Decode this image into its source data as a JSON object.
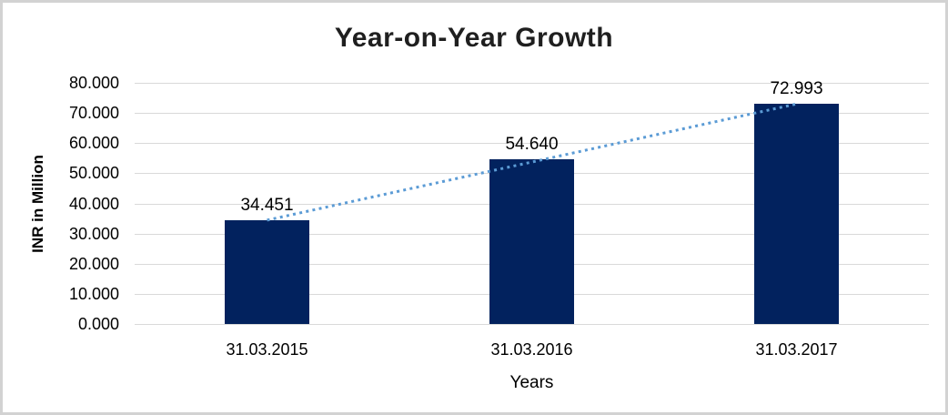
{
  "chart_data": {
    "type": "bar",
    "title": "Year-on-Year Growth",
    "xlabel": "Years",
    "ylabel": "INR in Million",
    "categories": [
      "31.03.2015",
      "31.03.2016",
      "31.03.2017"
    ],
    "values": [
      34451,
      54640,
      72993
    ],
    "value_labels": [
      "34.451",
      "54.640",
      "72.993"
    ],
    "y_ticks": [
      {
        "value": 80000,
        "label": "80.000"
      },
      {
        "value": 70000,
        "label": "70.000"
      },
      {
        "value": 60000,
        "label": "60.000"
      },
      {
        "value": 50000,
        "label": "50.000"
      },
      {
        "value": 40000,
        "label": "40.000"
      },
      {
        "value": 30000,
        "label": "30.000"
      },
      {
        "value": 20000,
        "label": "20.000"
      },
      {
        "value": 10000,
        "label": "10.000"
      },
      {
        "value": 0,
        "label": "0.000"
      }
    ],
    "ylim": [
      0,
      80000
    ],
    "grid": "horizontal",
    "legend": "none",
    "trendline": {
      "type": "linear",
      "style": "dotted"
    },
    "colors": {
      "bar": "#02225E",
      "trendline": "#5B9BD5",
      "gridline": "#D9D9D9",
      "title_text": "#1F1F1F",
      "axis_text": "#000000",
      "frame_border": "#D2D2D2",
      "background": "#FFFFFF"
    }
  }
}
